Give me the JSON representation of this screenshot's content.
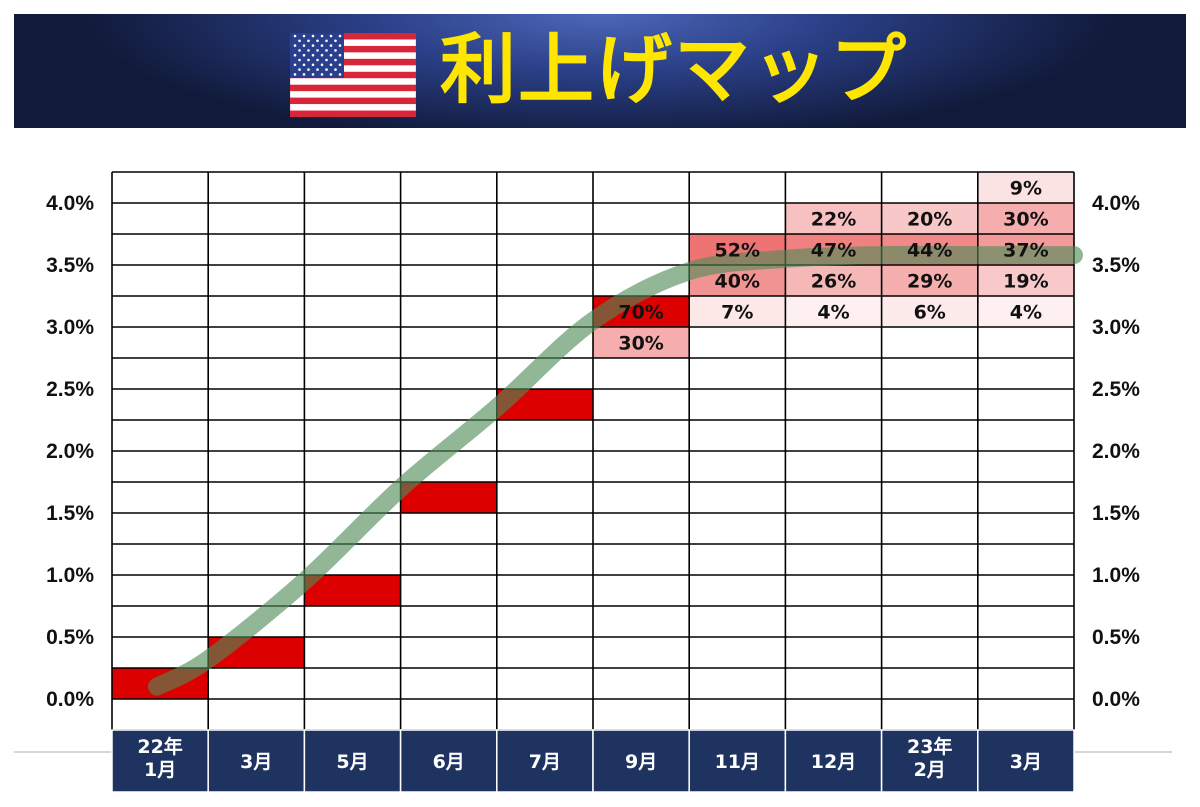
{
  "header": {
    "title": "利上げマップ",
    "flag_icon": "us-flag-icon"
  },
  "chart_data": {
    "type": "heatmap",
    "title": "利上げマップ",
    "categories": [
      "22年\n1月",
      "3月",
      "5月",
      "6月",
      "7月",
      "9月",
      "11月",
      "12月",
      "23年\n2月",
      "3月"
    ],
    "y_ticks": [
      "0.0%",
      "0.5%",
      "1.0%",
      "1.5%",
      "2.0%",
      "2.5%",
      "3.0%",
      "3.5%",
      "4.0%"
    ],
    "ylim": [
      0,
      4.25
    ],
    "band_step": 0.25,
    "decided_rate_lower": [
      0.0,
      0.25,
      0.75,
      1.5,
      2.25,
      3.0
    ],
    "cells": [
      {
        "month": 5,
        "lower": 3.0,
        "value": 70
      },
      {
        "month": 5,
        "lower": 2.75,
        "value": 30
      },
      {
        "month": 6,
        "lower": 3.5,
        "value": 52
      },
      {
        "month": 6,
        "lower": 3.25,
        "value": 40
      },
      {
        "month": 6,
        "lower": 3.0,
        "value": 7
      },
      {
        "month": 7,
        "lower": 3.75,
        "value": 22
      },
      {
        "month": 7,
        "lower": 3.5,
        "value": 47
      },
      {
        "month": 7,
        "lower": 3.25,
        "value": 26
      },
      {
        "month": 7,
        "lower": 3.0,
        "value": 4
      },
      {
        "month": 8,
        "lower": 3.75,
        "value": 20
      },
      {
        "month": 8,
        "lower": 3.5,
        "value": 44
      },
      {
        "month": 8,
        "lower": 3.25,
        "value": 29
      },
      {
        "month": 8,
        "lower": 3.0,
        "value": 6
      },
      {
        "month": 9,
        "lower": 4.0,
        "value": 9
      },
      {
        "month": 9,
        "lower": 3.75,
        "value": 30
      },
      {
        "month": 9,
        "lower": 3.5,
        "value": 37
      },
      {
        "month": 9,
        "lower": 3.25,
        "value": 19
      },
      {
        "month": 9,
        "lower": 3.0,
        "value": 4
      }
    ],
    "trend_line": [
      {
        "x": 0.0,
        "y": 0.1
      },
      {
        "x": 1.0,
        "y": 0.32
      },
      {
        "x": 2.0,
        "y": 0.95
      },
      {
        "x": 3.0,
        "y": 1.7
      },
      {
        "x": 4.0,
        "y": 2.35
      },
      {
        "x": 5.0,
        "y": 3.05
      },
      {
        "x": 6.0,
        "y": 3.45
      },
      {
        "x": 7.0,
        "y": 3.55
      },
      {
        "x": 8.0,
        "y": 3.58
      },
      {
        "x": 9.0,
        "y": 3.58
      },
      {
        "x": 10.0,
        "y": 3.58
      }
    ],
    "colors": {
      "decided": "#dd0000",
      "trend": "#4e8a57",
      "header_bg": "#1e3360",
      "title": "#ffe600"
    }
  }
}
